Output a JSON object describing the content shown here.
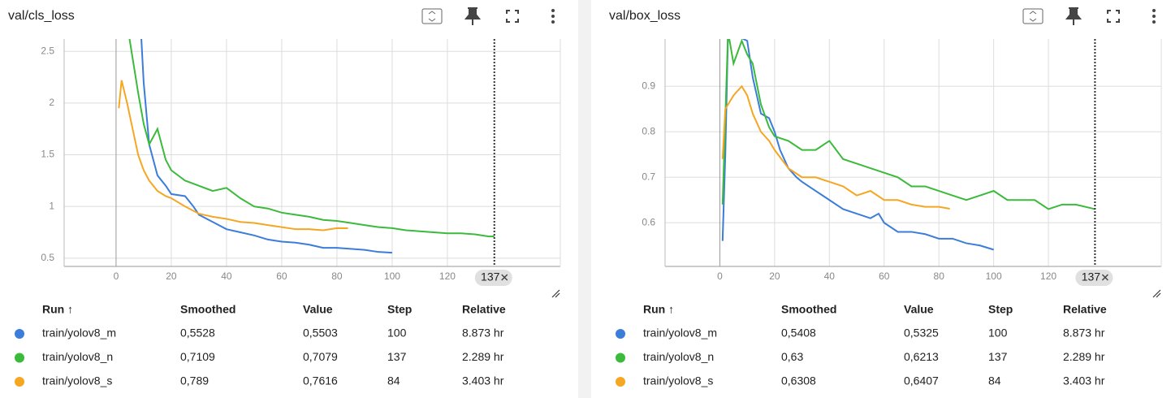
{
  "panels": [
    {
      "title": "val/cls_loss",
      "chart_data": {
        "type": "line",
        "xlim": [
          -18.8,
          160.9
        ],
        "xticks": [
          0,
          20,
          40,
          60,
          80,
          100,
          120
        ],
        "ylim": [
          0.42,
          2.62
        ],
        "yticks": [
          0.5,
          1,
          1.5,
          2,
          2.5
        ],
        "grid": true,
        "cursor_step": 137,
        "series": [
          {
            "color": "#3b7dd8",
            "x": [
              9,
              10,
              12,
              15,
              18,
              20,
              25,
              28,
              30,
              35,
              40,
              45,
              50,
              55,
              60,
              65,
              70,
              75,
              80,
              85,
              90,
              95,
              100
            ],
            "values": [
              2.7,
              2.2,
              1.6,
              1.3,
              1.2,
              1.12,
              1.1,
              1.0,
              0.92,
              0.85,
              0.78,
              0.75,
              0.72,
              0.68,
              0.66,
              0.65,
              0.63,
              0.6,
              0.6,
              0.59,
              0.58,
              0.56,
              0.5528
            ]
          },
          {
            "color": "#3cba3c",
            "x": [
              4,
              5,
              8,
              10,
              12,
              15,
              18,
              20,
              25,
              30,
              35,
              40,
              45,
              50,
              55,
              60,
              65,
              70,
              75,
              80,
              85,
              90,
              95,
              100,
              105,
              110,
              115,
              120,
              125,
              130,
              135,
              137
            ],
            "values": [
              2.8,
              2.6,
              2.1,
              1.8,
              1.6,
              1.75,
              1.45,
              1.35,
              1.25,
              1.2,
              1.15,
              1.18,
              1.08,
              1.0,
              0.98,
              0.94,
              0.92,
              0.9,
              0.87,
              0.86,
              0.84,
              0.82,
              0.8,
              0.79,
              0.77,
              0.76,
              0.75,
              0.74,
              0.74,
              0.73,
              0.71,
              0.7109
            ]
          },
          {
            "color": "#f5a623",
            "x": [
              1,
              2,
              4,
              6,
              8,
              10,
              12,
              15,
              18,
              20,
              25,
              30,
              35,
              40,
              45,
              50,
              55,
              60,
              65,
              70,
              75,
              80,
              84
            ],
            "values": [
              1.95,
              2.22,
              2.0,
              1.75,
              1.5,
              1.35,
              1.25,
              1.15,
              1.1,
              1.08,
              1.0,
              0.93,
              0.9,
              0.88,
              0.85,
              0.84,
              0.82,
              0.8,
              0.78,
              0.78,
              0.77,
              0.79,
              0.789
            ]
          }
        ]
      },
      "table": {
        "header": [
          "Run ↑",
          "Smoothed",
          "Value",
          "Step",
          "Relative"
        ],
        "rows": [
          [
            "train/yolov8_m",
            "0,5528",
            "0,5503",
            "100",
            "8.873 hr"
          ],
          [
            "train/yolov8_n",
            "0,7109",
            "0,7079",
            "137",
            "2.289 hr"
          ],
          [
            "train/yolov8_s",
            "0,789",
            "0,7616",
            "84",
            "3.403 hr"
          ]
        ]
      }
    },
    {
      "title": "val/box_loss",
      "chart_data": {
        "type": "line",
        "xlim": [
          -20,
          161.2
        ],
        "xticks": [
          0,
          20,
          40,
          60,
          80,
          100,
          120
        ],
        "ylim": [
          0.504,
          1.004
        ],
        "yticks": [
          0.6,
          0.7,
          0.8,
          0.9
        ],
        "grid": true,
        "cursor_step": 137,
        "series": [
          {
            "color": "#3b7dd8",
            "x": [
              1,
              2,
              3,
              10,
              12,
              15,
              18,
              20,
              22,
              25,
              28,
              30,
              35,
              40,
              45,
              50,
              55,
              58,
              60,
              65,
              70,
              75,
              80,
              85,
              90,
              95,
              100
            ],
            "values": [
              0.56,
              0.75,
              1.02,
              1.0,
              0.92,
              0.84,
              0.83,
              0.8,
              0.76,
              0.72,
              0.7,
              0.69,
              0.67,
              0.65,
              0.63,
              0.62,
              0.61,
              0.62,
              0.6,
              0.58,
              0.58,
              0.575,
              0.565,
              0.565,
              0.555,
              0.55,
              0.5408
            ]
          },
          {
            "color": "#3cba3c",
            "x": [
              1,
              3,
              5,
              8,
              10,
              12,
              15,
              18,
              20,
              25,
              30,
              35,
              40,
              45,
              50,
              55,
              60,
              65,
              70,
              75,
              80,
              85,
              90,
              95,
              100,
              105,
              110,
              115,
              120,
              125,
              130,
              137
            ],
            "values": [
              0.64,
              1.02,
              0.95,
              1.0,
              0.97,
              0.95,
              0.86,
              0.81,
              0.79,
              0.78,
              0.76,
              0.76,
              0.78,
              0.74,
              0.73,
              0.72,
              0.71,
              0.7,
              0.68,
              0.68,
              0.67,
              0.66,
              0.65,
              0.66,
              0.67,
              0.65,
              0.65,
              0.65,
              0.63,
              0.64,
              0.64,
              0.63
            ]
          },
          {
            "color": "#f5a623",
            "x": [
              1,
              2,
              5,
              8,
              10,
              12,
              15,
              18,
              20,
              25,
              30,
              35,
              40,
              45,
              50,
              55,
              60,
              65,
              70,
              75,
              80,
              84
            ],
            "values": [
              0.74,
              0.85,
              0.88,
              0.9,
              0.88,
              0.84,
              0.8,
              0.78,
              0.76,
              0.72,
              0.7,
              0.7,
              0.69,
              0.68,
              0.66,
              0.67,
              0.65,
              0.65,
              0.64,
              0.635,
              0.635,
              0.6308
            ]
          }
        ]
      },
      "table": {
        "header": [
          "Run ↑",
          "Smoothed",
          "Value",
          "Step",
          "Relative"
        ],
        "rows": [
          [
            "train/yolov8_m",
            "0,5408",
            "0,5325",
            "100",
            "8.873 hr"
          ],
          [
            "train/yolov8_n",
            "0,63",
            "0,6213",
            "137",
            "2.289 hr"
          ],
          [
            "train/yolov8_s",
            "0,6308",
            "0,6407",
            "84",
            "3.403 hr"
          ]
        ]
      }
    }
  ]
}
